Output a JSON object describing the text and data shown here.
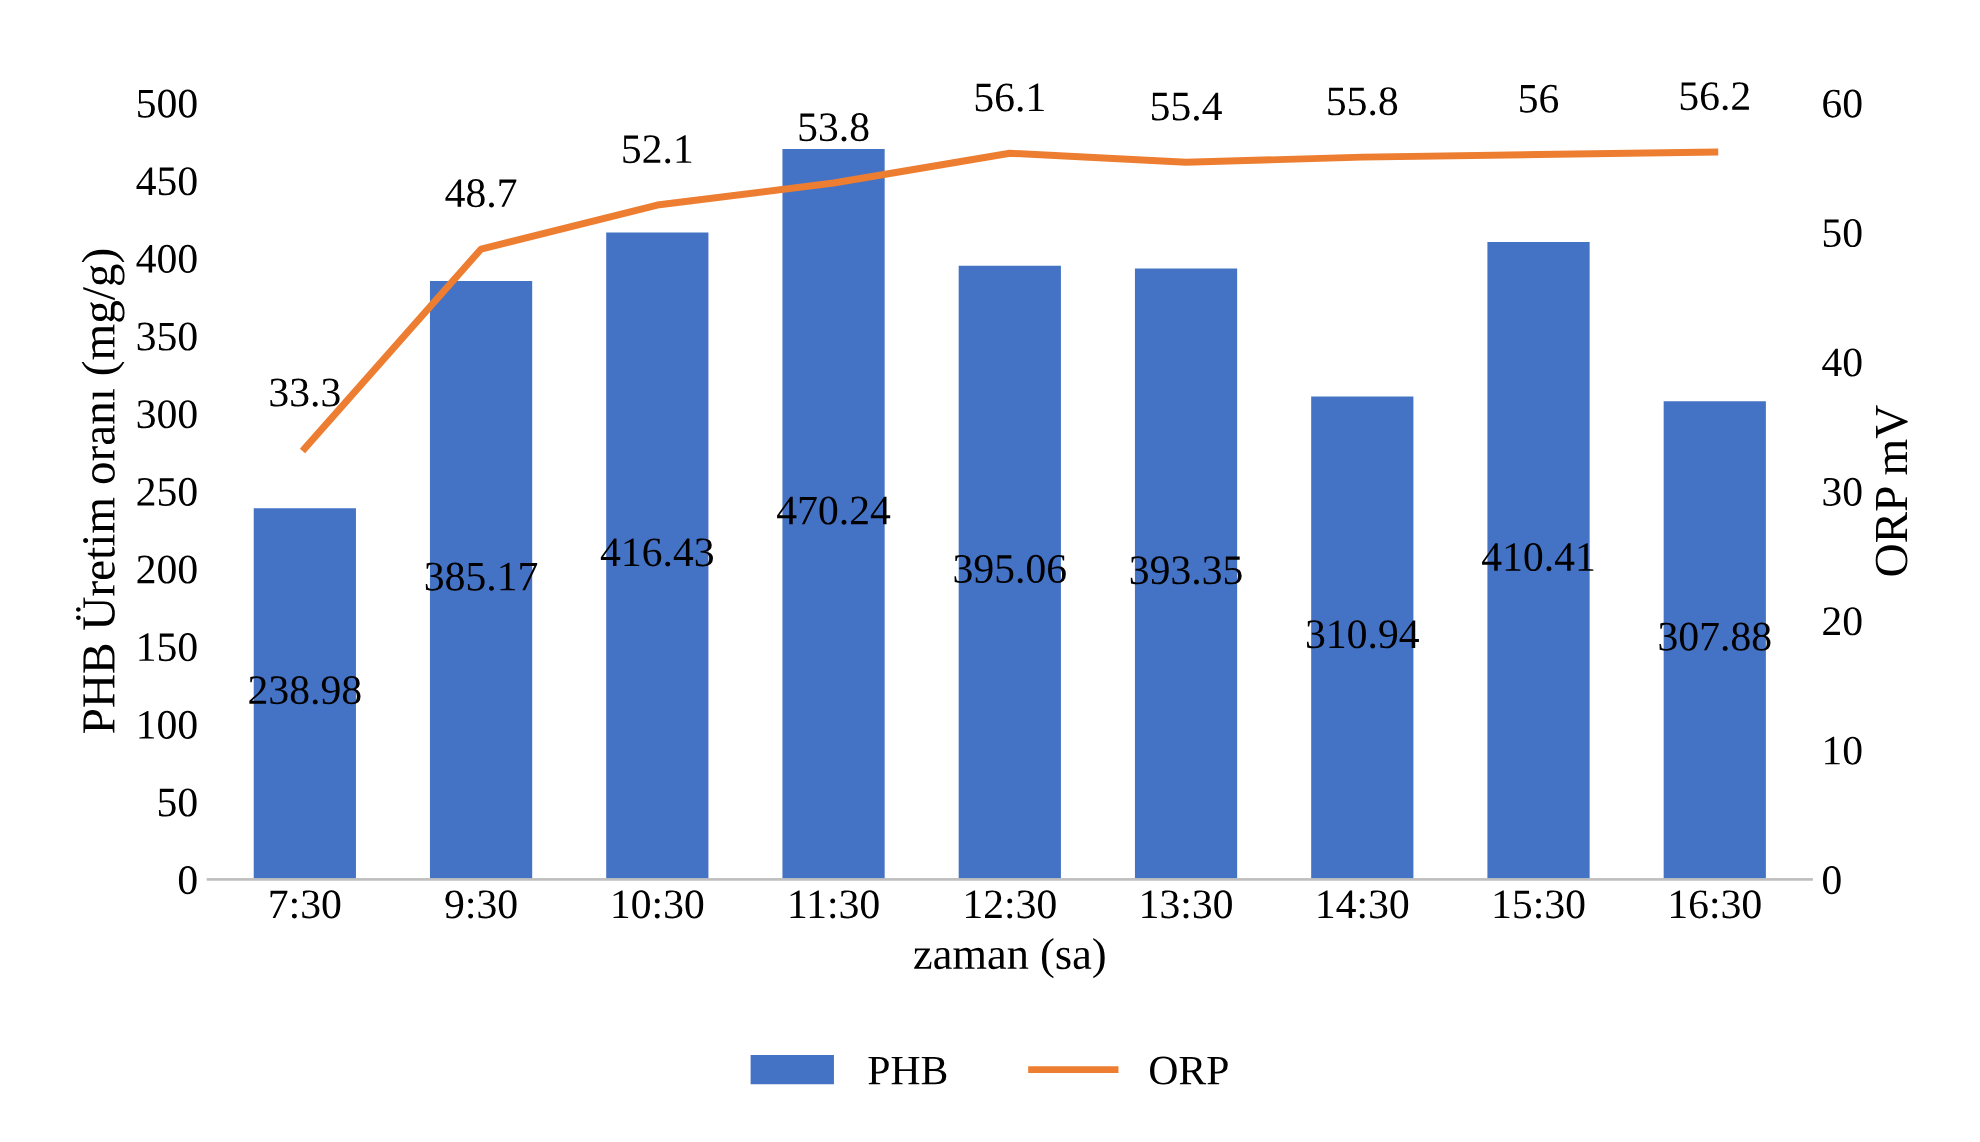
{
  "chart_data": {
    "type": "bar",
    "xlabel": "zaman (sa)",
    "ylabel": "PHB Üretim oranı (mg/g)",
    "y2label": "ORP mV",
    "categories": [
      "7:30",
      "9:30",
      "10:30",
      "11:30",
      "12:30",
      "13:30",
      "14:30",
      "15:30",
      "16:30"
    ],
    "series": [
      {
        "name": "PHB",
        "color": "#4472c4",
        "values": [
          238.98,
          385.17,
          416.43,
          470.24,
          395.06,
          393.35,
          310.94,
          410.41,
          307.88
        ]
      },
      {
        "name": "ORP",
        "type": "line",
        "axis": "y2",
        "color": "#ed7d31",
        "values": [
          33.3,
          48.7,
          52.1,
          53.8,
          56.1,
          55.4,
          55.8,
          56,
          56.2
        ]
      }
    ],
    "ylim": [
      0,
      500
    ],
    "yticks": [
      0,
      50,
      100,
      150,
      200,
      250,
      300,
      350,
      400,
      450,
      500
    ],
    "y2lim": [
      0,
      60
    ],
    "y2ticks": [
      0,
      10,
      20,
      30,
      40,
      50,
      60
    ],
    "data_labels": true,
    "grid": false,
    "legend": "bottom",
    "marker": "none",
    "line_style": "solid"
  }
}
